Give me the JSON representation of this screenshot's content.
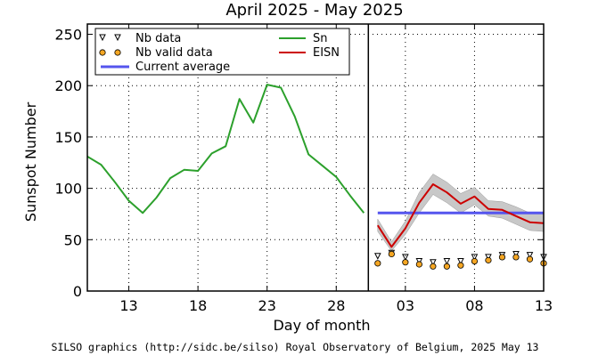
{
  "chart_data": {
    "type": "line",
    "title": "April 2025 - May 2025",
    "xlabel": "Day of month",
    "ylabel": "Sunspot Number",
    "ylim": [
      0,
      260
    ],
    "yticks": [
      0,
      50,
      100,
      150,
      200,
      250
    ],
    "xlim": [
      "2025-04-10",
      "2025-05-13"
    ],
    "x_ticks": [
      {
        "date": "2025-04-13",
        "label": "13"
      },
      {
        "date": "2025-04-18",
        "label": "18"
      },
      {
        "date": "2025-04-23",
        "label": "23"
      },
      {
        "date": "2025-04-28",
        "label": "28"
      },
      {
        "date": "2025-05-03",
        "label": "03"
      },
      {
        "date": "2025-05-08",
        "label": "08"
      },
      {
        "date": "2025-05-13",
        "label": "13"
      }
    ],
    "grid": true,
    "legend_position": "top",
    "divider_date": "2025-04-30",
    "series": [
      {
        "name": "Sn",
        "color": "#2ca02c",
        "points": [
          {
            "x": "2025-04-10",
            "y": 131
          },
          {
            "x": "2025-04-11",
            "y": 123
          },
          {
            "x": "2025-04-12",
            "y": 106
          },
          {
            "x": "2025-04-13",
            "y": 88
          },
          {
            "x": "2025-04-14",
            "y": 76
          },
          {
            "x": "2025-04-15",
            "y": 91
          },
          {
            "x": "2025-04-16",
            "y": 110
          },
          {
            "x": "2025-04-17",
            "y": 118
          },
          {
            "x": "2025-04-18",
            "y": 117
          },
          {
            "x": "2025-04-19",
            "y": 134
          },
          {
            "x": "2025-04-20",
            "y": 141
          },
          {
            "x": "2025-04-21",
            "y": 187
          },
          {
            "x": "2025-04-22",
            "y": 164
          },
          {
            "x": "2025-04-23",
            "y": 201
          },
          {
            "x": "2025-04-24",
            "y": 198
          },
          {
            "x": "2025-04-25",
            "y": 170
          },
          {
            "x": "2025-04-26",
            "y": 133
          },
          {
            "x": "2025-04-27",
            "y": 122
          },
          {
            "x": "2025-04-28",
            "y": 111
          },
          {
            "x": "2025-04-29",
            "y": 93
          },
          {
            "x": "2025-04-30",
            "y": 76
          }
        ]
      },
      {
        "name": "EISN",
        "color": "#cc0000",
        "points": [
          {
            "x": "2025-05-01",
            "y": 64
          },
          {
            "x": "2025-05-02",
            "y": 43
          },
          {
            "x": "2025-05-03",
            "y": 61
          },
          {
            "x": "2025-05-04",
            "y": 86
          },
          {
            "x": "2025-05-05",
            "y": 104
          },
          {
            "x": "2025-05-06",
            "y": 96
          },
          {
            "x": "2025-05-07",
            "y": 85
          },
          {
            "x": "2025-05-08",
            "y": 92
          },
          {
            "x": "2025-05-09",
            "y": 80
          },
          {
            "x": "2025-05-10",
            "y": 79
          },
          {
            "x": "2025-05-11",
            "y": 73
          },
          {
            "x": "2025-05-12",
            "y": 67
          },
          {
            "x": "2025-05-13",
            "y": 66
          }
        ]
      }
    ],
    "eisn_band": {
      "color": "#c8c8c8",
      "points": [
        {
          "x": "2025-05-01",
          "low": 58,
          "high": 70
        },
        {
          "x": "2025-05-02",
          "low": 39,
          "high": 48
        },
        {
          "x": "2025-05-03",
          "low": 55,
          "high": 68
        },
        {
          "x": "2025-05-04",
          "low": 76,
          "high": 96
        },
        {
          "x": "2025-05-05",
          "low": 94,
          "high": 114
        },
        {
          "x": "2025-05-06",
          "low": 86,
          "high": 106
        },
        {
          "x": "2025-05-07",
          "low": 76,
          "high": 95
        },
        {
          "x": "2025-05-08",
          "low": 84,
          "high": 101
        },
        {
          "x": "2025-05-09",
          "low": 73,
          "high": 88
        },
        {
          "x": "2025-05-10",
          "low": 71,
          "high": 87
        },
        {
          "x": "2025-05-11",
          "low": 65,
          "high": 82
        },
        {
          "x": "2025-05-12",
          "low": 59,
          "high": 76
        },
        {
          "x": "2025-05-13",
          "low": 58,
          "high": 75
        }
      ]
    },
    "current_average": {
      "name": "Current average",
      "color": "#5555ee",
      "value": 76,
      "x_start": "2025-05-01",
      "x_end": "2025-05-13"
    },
    "nb_data": {
      "name": "Nb data",
      "points": [
        {
          "x": "2025-05-01",
          "y": 34
        },
        {
          "x": "2025-05-02",
          "y": 37
        },
        {
          "x": "2025-05-03",
          "y": 33
        },
        {
          "x": "2025-05-04",
          "y": 29
        },
        {
          "x": "2025-05-05",
          "y": 28
        },
        {
          "x": "2025-05-06",
          "y": 29
        },
        {
          "x": "2025-05-07",
          "y": 29
        },
        {
          "x": "2025-05-08",
          "y": 33
        },
        {
          "x": "2025-05-09",
          "y": 33
        },
        {
          "x": "2025-05-10",
          "y": 35
        },
        {
          "x": "2025-05-11",
          "y": 36
        },
        {
          "x": "2025-05-12",
          "y": 35
        },
        {
          "x": "2025-05-13",
          "y": 33
        }
      ]
    },
    "nb_valid_data": {
      "name": "Nb valid data",
      "color": "#f5a623",
      "points": [
        {
          "x": "2025-05-01",
          "y": 27
        },
        {
          "x": "2025-05-02",
          "y": 36
        },
        {
          "x": "2025-05-03",
          "y": 28
        },
        {
          "x": "2025-05-04",
          "y": 26
        },
        {
          "x": "2025-05-05",
          "y": 24
        },
        {
          "x": "2025-05-06",
          "y": 24
        },
        {
          "x": "2025-05-07",
          "y": 25
        },
        {
          "x": "2025-05-08",
          "y": 29
        },
        {
          "x": "2025-05-09",
          "y": 30
        },
        {
          "x": "2025-05-10",
          "y": 33
        },
        {
          "x": "2025-05-11",
          "y": 33
        },
        {
          "x": "2025-05-12",
          "y": 31
        },
        {
          "x": "2025-05-13",
          "y": 27
        }
      ]
    }
  },
  "footer": "SILSO graphics (http://sidc.be/silso) Royal Observatory of Belgium, 2025 May 13"
}
